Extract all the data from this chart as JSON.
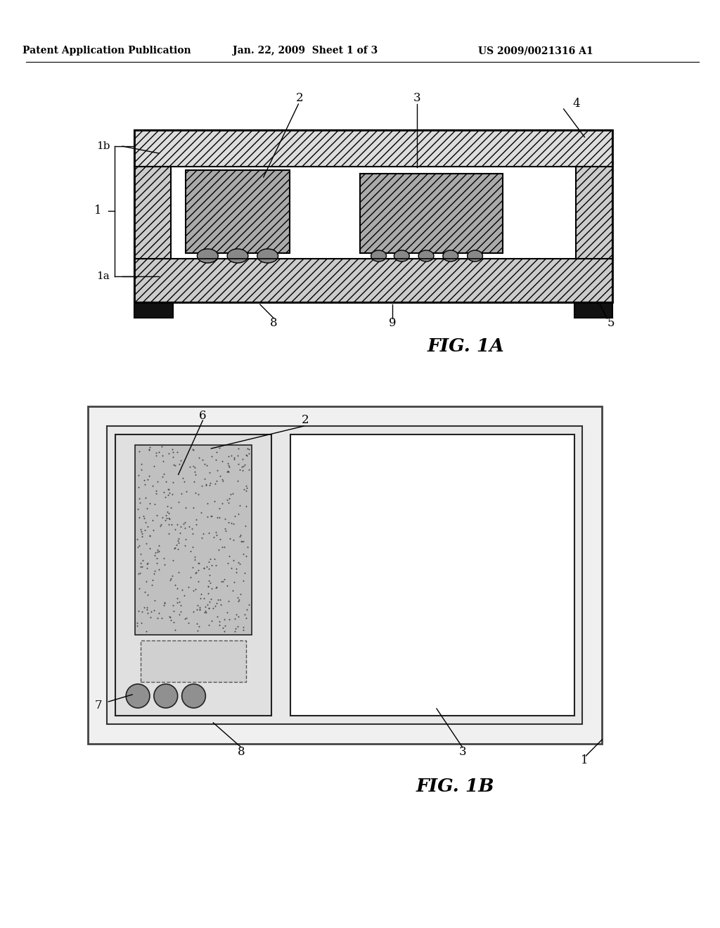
{
  "bg_color": "#ffffff",
  "header_text": "Patent Application Publication",
  "header_date": "Jan. 22, 2009  Sheet 1 of 3",
  "header_patent": "US 2009/0021316 A1",
  "fig1a_label": "FIG. 1A",
  "fig1b_label": "FIG. 1B",
  "line_color": "#000000"
}
